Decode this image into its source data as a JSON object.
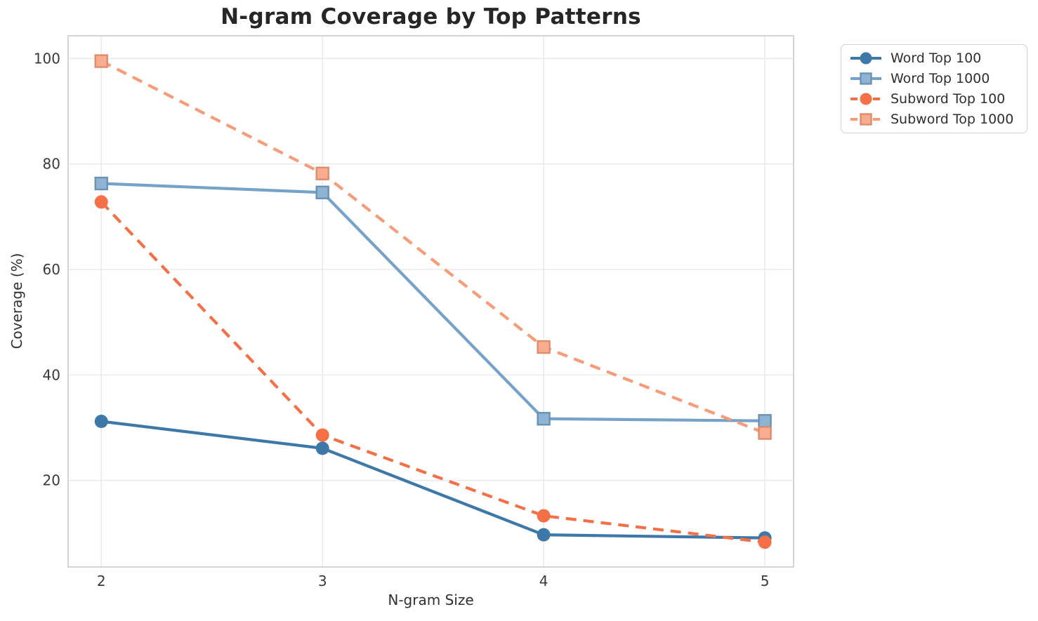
{
  "chart_data": {
    "type": "line",
    "title": "N-gram Coverage by Top Patterns",
    "xlabel": "N-gram Size",
    "ylabel": "Coverage (%)",
    "x": [
      2,
      3,
      4,
      5
    ],
    "xticks": [
      2,
      3,
      4,
      5
    ],
    "yticks": [
      20,
      40,
      60,
      80,
      100
    ],
    "xlim": [
      1.85,
      5.13
    ],
    "ylim": [
      3.6,
      104.3
    ],
    "grid": true,
    "legend_position": "outside-upper-right",
    "series": [
      {
        "name": "Word Top 100",
        "color": "#3D78A8",
        "line_style": "solid",
        "marker": "circle",
        "values": [
          31.2,
          26.1,
          9.7,
          9.1
        ]
      },
      {
        "name": "Word Top 1000",
        "color": "#76A2C9",
        "line_style": "solid",
        "marker": "square",
        "values": [
          76.3,
          74.6,
          31.7,
          31.3
        ]
      },
      {
        "name": "Subword Top 100",
        "color": "#F56F47",
        "line_style": "dashed",
        "marker": "circle",
        "values": [
          72.8,
          28.6,
          13.3,
          8.3
        ]
      },
      {
        "name": "Subword Top 1000",
        "color": "#F89B78",
        "line_style": "dashed",
        "marker": "square",
        "values": [
          99.5,
          78.2,
          45.3,
          29.0
        ]
      }
    ],
    "colors": {
      "background": "#FFFFFF",
      "grid": "#EBEBEB",
      "axes_border": "#D4D4D4",
      "title_text": "#262626",
      "tick_text": "#3A3A3A",
      "label_text": "#303030",
      "legend_border": "#D4D4D4",
      "legend_background": "#FFFFFF",
      "legend_text": "#2F2F2F"
    }
  }
}
